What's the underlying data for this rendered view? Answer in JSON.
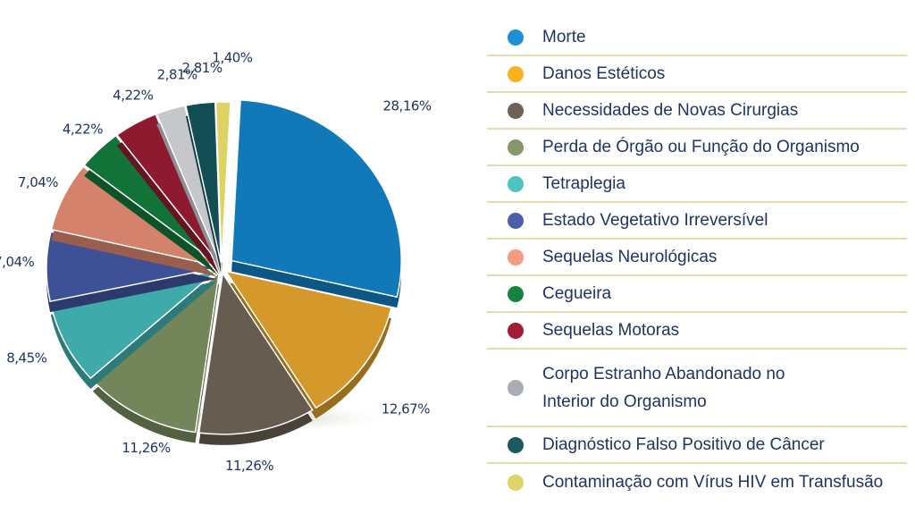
{
  "chart_data": {
    "type": "pie",
    "title": "",
    "series": [
      {
        "name": "Morte",
        "value": 28.16,
        "label": "28,16%",
        "color": "#1279b8",
        "dot": "#1e8fd3"
      },
      {
        "name": "Danos Estéticos",
        "value": 12.67,
        "label": "12,67%",
        "color": "#d5982a",
        "dot": "#fbb21c"
      },
      {
        "name": "Necessidades de Novas Cirurgias",
        "value": 11.26,
        "label": "11,26%",
        "color": "#665c4f",
        "dot": "#6e6255"
      },
      {
        "name": "Perda de Órgão ou Função do Organismo",
        "value": 11.26,
        "label": "11,26%",
        "color": "#73865a",
        "dot": "#84986a"
      },
      {
        "name": "Tetraplegia",
        "value": 8.45,
        "label": "8,45%",
        "color": "#3eaaa9",
        "dot": "#4fc3c1"
      },
      {
        "name": "Estado Vegetativo Irreversível",
        "value": 7.04,
        "label": "7,04%",
        "color": "#3f5196",
        "dot": "#4a5ea9"
      },
      {
        "name": "Sequelas Neurológicas",
        "value": 7.04,
        "label": "7,04%",
        "color": "#d5826d",
        "dot": "#f39a82"
      },
      {
        "name": "Cegueira",
        "value": 4.22,
        "label": "4,22%",
        "color": "#127339",
        "dot": "#14843f"
      },
      {
        "name": "Sequelas Motoras",
        "value": 4.22,
        "label": "4,22%",
        "color": "#8e1a2f",
        "dot": "#a11d36"
      },
      {
        "name": "Corpo Estranho Abandonado no Interior do Organismo",
        "name_lines": [
          "Corpo Estranho Abandonado no",
          "Interior do Organismo"
        ],
        "value": 2.81,
        "label": "2,81%",
        "color": "#c5c7cb",
        "dot": "#a9aeb5"
      },
      {
        "name": "Diagnóstico Falso Positivo de Câncer",
        "value": 2.81,
        "label": "2,81%",
        "color": "#134e55",
        "dot": "#1a5a5f"
      },
      {
        "name": "Contaminação com Vírus HIV em Transfusão",
        "value": 1.4,
        "label": "1,40%",
        "color": "#ddd362",
        "dot": "#ddd46a"
      }
    ],
    "legend": "right"
  }
}
